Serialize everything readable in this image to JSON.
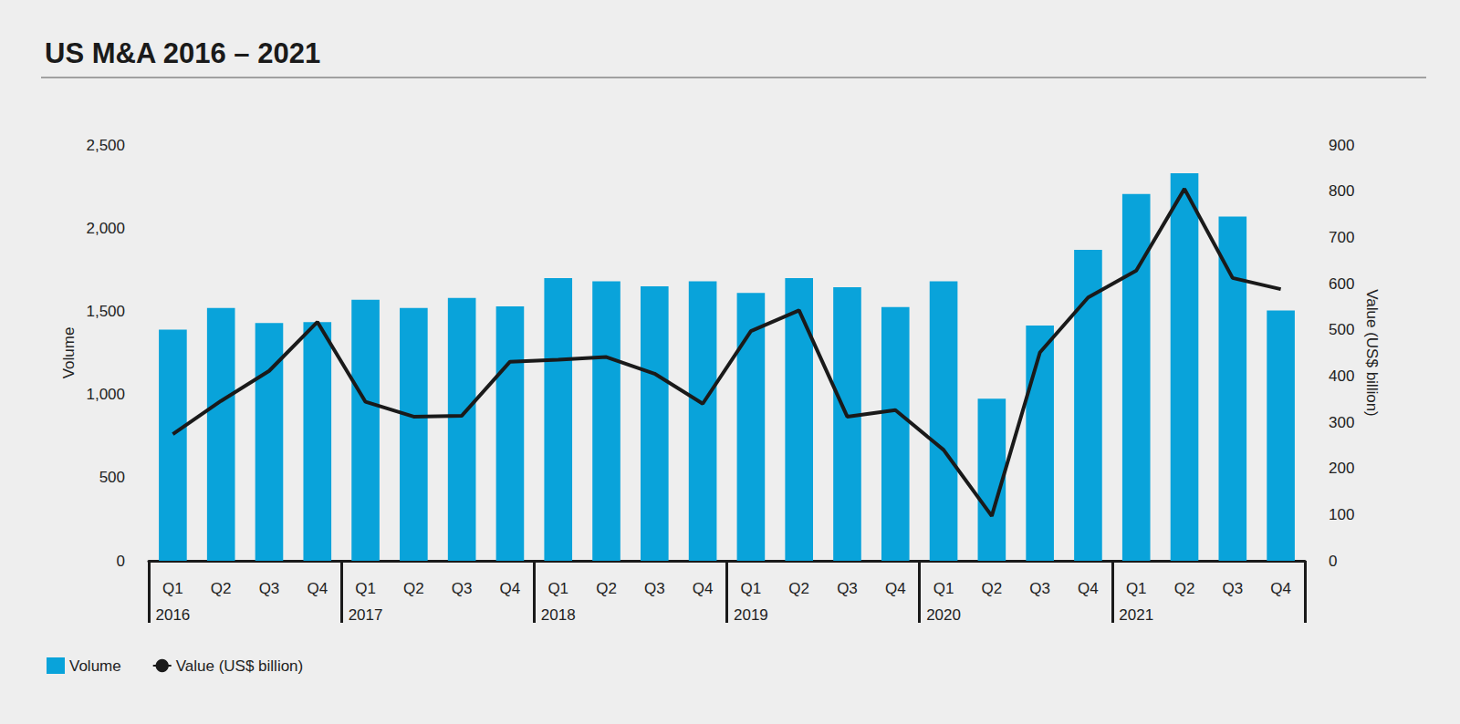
{
  "chart_data": {
    "type": "bar",
    "title": "US M&A 2016 – 2021",
    "categories": [
      "Q1",
      "Q2",
      "Q3",
      "Q4",
      "Q1",
      "Q2",
      "Q3",
      "Q4",
      "Q1",
      "Q2",
      "Q3",
      "Q4",
      "Q1",
      "Q2",
      "Q3",
      "Q4",
      "Q1",
      "Q2",
      "Q3",
      "Q4",
      "Q1",
      "Q2",
      "Q3",
      "Q4"
    ],
    "year_labels": [
      "2016",
      "2017",
      "2018",
      "2019",
      "2020",
      "2021"
    ],
    "series": [
      {
        "name": "Volume",
        "type": "bar",
        "color": "#09a3da",
        "values": [
          1390,
          1520,
          1430,
          1435,
          1570,
          1520,
          1580,
          1530,
          1700,
          1680,
          1650,
          1680,
          1610,
          1700,
          1645,
          1525,
          1680,
          975,
          1415,
          1870,
          2205,
          2330,
          2070,
          1505
        ]
      },
      {
        "name": "Value (US$ billion)",
        "type": "line",
        "color": "#1a1a1a",
        "axis": "y2",
        "values": [
          274,
          346,
          411,
          517,
          344,
          312,
          314,
          431,
          435,
          441,
          405,
          340,
          497,
          542,
          312,
          326,
          240,
          97,
          451,
          570,
          628,
          805,
          612,
          588
        ]
      }
    ],
    "ylabel": "Volume",
    "y2label": "Value (US$ billion)",
    "ylim": [
      0,
      2500
    ],
    "yticks": [
      0,
      500,
      {
        "value": 1000,
        "label": "1,000"
      },
      {
        "value": 1500,
        "label": "1,500"
      },
      {
        "value": 2000,
        "label": "2,000"
      },
      {
        "value": 2500,
        "label": "2,500"
      }
    ],
    "y2lim": [
      0,
      900
    ],
    "y2ticks": [
      0,
      100,
      200,
      300,
      400,
      500,
      600,
      700,
      800,
      900
    ],
    "grid": false,
    "legend": "bottom-left"
  }
}
